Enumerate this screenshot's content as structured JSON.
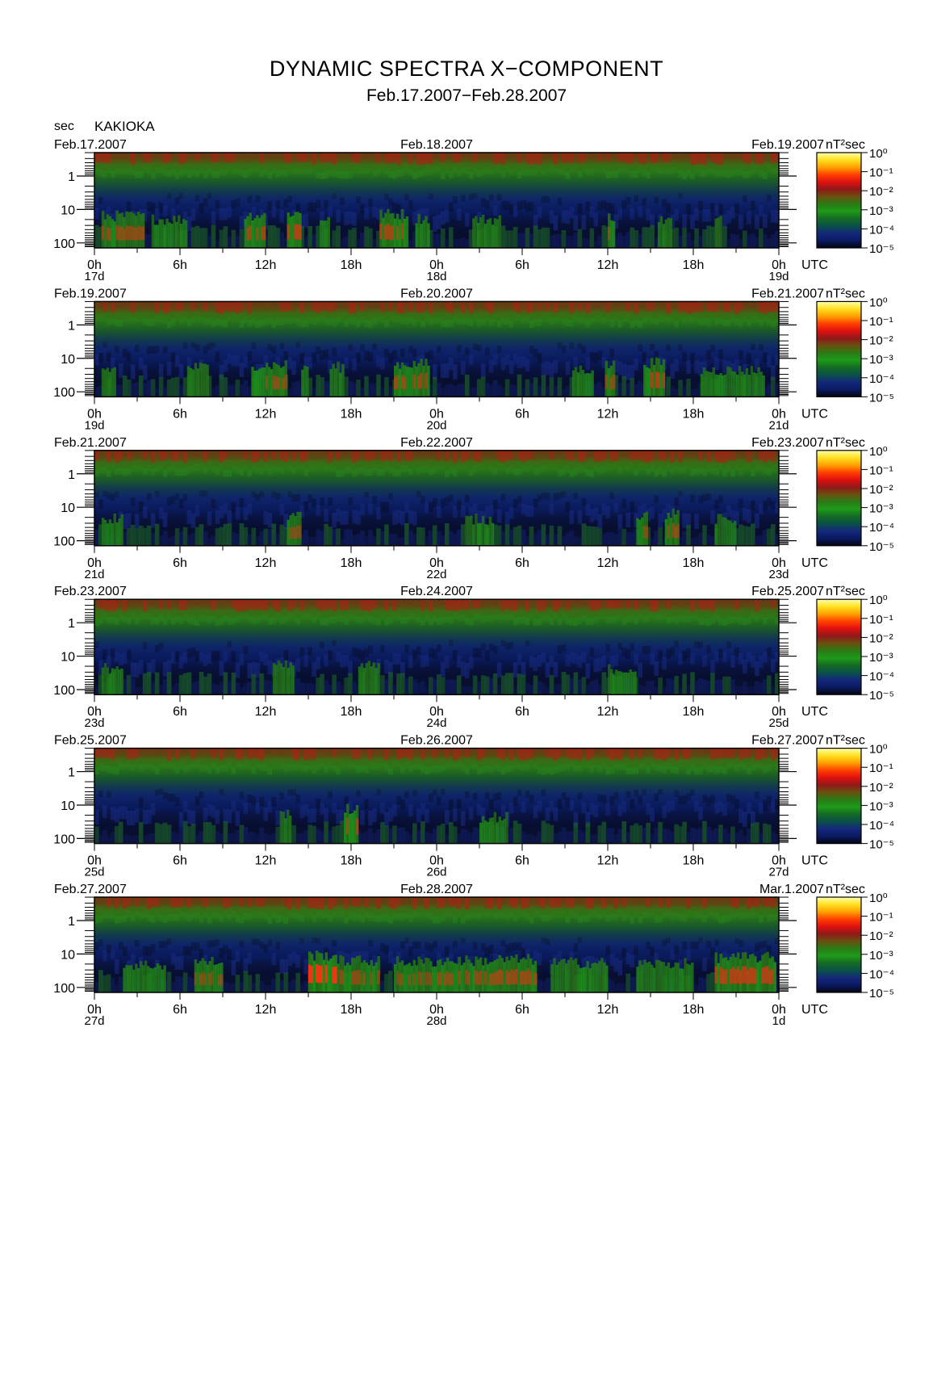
{
  "figure": {
    "title": "DYNAMIC SPECTRA X−COMPONENT",
    "subtitle": "Feb.17.2007−Feb.28.2007",
    "y_unit_label": "sec",
    "station": "KAKIOKA"
  },
  "chart_data": {
    "type": "heatmap",
    "y_axis": {
      "label": "sec",
      "ticks": [
        "1",
        "10",
        "100"
      ],
      "scale": "log",
      "direction": "period increases downward"
    },
    "x_axis": {
      "ticks": [
        "0h",
        "6h",
        "12h",
        "18h",
        "0h",
        "6h",
        "12h",
        "18h",
        "0h"
      ],
      "unit_label": "UTC"
    },
    "colorbar": {
      "unit": "nT²sec",
      "ticks": [
        "10⁰",
        "10⁻¹",
        "10⁻²",
        "10⁻³",
        "10⁻⁴",
        "10⁻⁵"
      ],
      "colors": [
        "#ffffaa",
        "#ffe020",
        "#ffa000",
        "#ff4000",
        "#e01010",
        "#901818",
        "#6a5010",
        "#2a7a14",
        "#1e9a18",
        "#146a24",
        "#0a5048",
        "#14287a",
        "#0a1a62",
        "#040410"
      ]
    },
    "panels": [
      {
        "left_date": "Feb.17.2007",
        "mid_date": "Feb.18.2007",
        "right_date": "Feb.19.2007",
        "day_labels": [
          "17d",
          "18d",
          "19d"
        ],
        "activity": [
          [
            0.5,
            3.5,
            0.7
          ],
          [
            4,
            6.5,
            0.55
          ],
          [
            10.5,
            12,
            0.75
          ],
          [
            13.5,
            14.5,
            0.85
          ],
          [
            15.8,
            16.5,
            0.6
          ],
          [
            20,
            22,
            0.8
          ],
          [
            22.5,
            23.5,
            0.6
          ],
          [
            26.5,
            28.5,
            0.55
          ],
          [
            36,
            36.5,
            0.7
          ],
          [
            39.5,
            40.5,
            0.5
          ],
          [
            43.5,
            44,
            0.5
          ]
        ]
      },
      {
        "left_date": "Feb.19.2007",
        "mid_date": "Feb.20.2007",
        "right_date": "Feb.21.2007",
        "day_labels": [
          "19d",
          "20d",
          "21d"
        ],
        "activity": [
          [
            0.5,
            1.5,
            0.5
          ],
          [
            6.5,
            8,
            0.6
          ],
          [
            11,
            13.5,
            0.7
          ],
          [
            14.5,
            15,
            0.6
          ],
          [
            16.5,
            17.5,
            0.6
          ],
          [
            21,
            23.5,
            0.75
          ],
          [
            33.5,
            35,
            0.5
          ],
          [
            35.8,
            36.5,
            0.7
          ],
          [
            38.5,
            40,
            0.8
          ],
          [
            42.5,
            47,
            0.45
          ]
        ]
      },
      {
        "left_date": "Feb.21.2007",
        "mid_date": "Feb.22.2007",
        "right_date": "Feb.23.2007",
        "day_labels": [
          "21d",
          "22d",
          "23d"
        ],
        "activity": [
          [
            0.5,
            2,
            0.5
          ],
          [
            13.5,
            14.5,
            0.65
          ],
          [
            26,
            28,
            0.45
          ],
          [
            38,
            38.8,
            0.65
          ],
          [
            40,
            41,
            0.7
          ],
          [
            43.5,
            45,
            0.45
          ]
        ]
      },
      {
        "left_date": "Feb.23.2007",
        "mid_date": "Feb.24.2007",
        "right_date": "Feb.25.2007",
        "day_labels": [
          "23d",
          "24d",
          "25d"
        ],
        "activity": [
          [
            0.5,
            2,
            0.45
          ],
          [
            12.5,
            14,
            0.55
          ],
          [
            18.5,
            20,
            0.55
          ],
          [
            36,
            38,
            0.4
          ]
        ]
      },
      {
        "left_date": "Feb.25.2007",
        "mid_date": "Feb.26.2007",
        "right_date": "Feb.27.2007",
        "day_labels": [
          "25d",
          "26d",
          "27d"
        ],
        "activity": [
          [
            13,
            13.8,
            0.55
          ],
          [
            17.5,
            18.5,
            0.85
          ],
          [
            27,
            29,
            0.45
          ]
        ]
      },
      {
        "left_date": "Feb.27.2007",
        "mid_date": "Feb.28.2007",
        "right_date": "Mar.1.2007",
        "day_labels": [
          "27d",
          "28d",
          "1d"
        ],
        "activity": [
          [
            2,
            5,
            0.5
          ],
          [
            7,
            9,
            0.65
          ],
          [
            15,
            17,
            0.95
          ],
          [
            17,
            20,
            0.7
          ],
          [
            21,
            24,
            0.65
          ],
          [
            24,
            28,
            0.7
          ],
          [
            28,
            31,
            0.75
          ],
          [
            32,
            36,
            0.6
          ],
          [
            38,
            42,
            0.55
          ],
          [
            43.5,
            47.8,
            0.85
          ]
        ]
      }
    ]
  }
}
